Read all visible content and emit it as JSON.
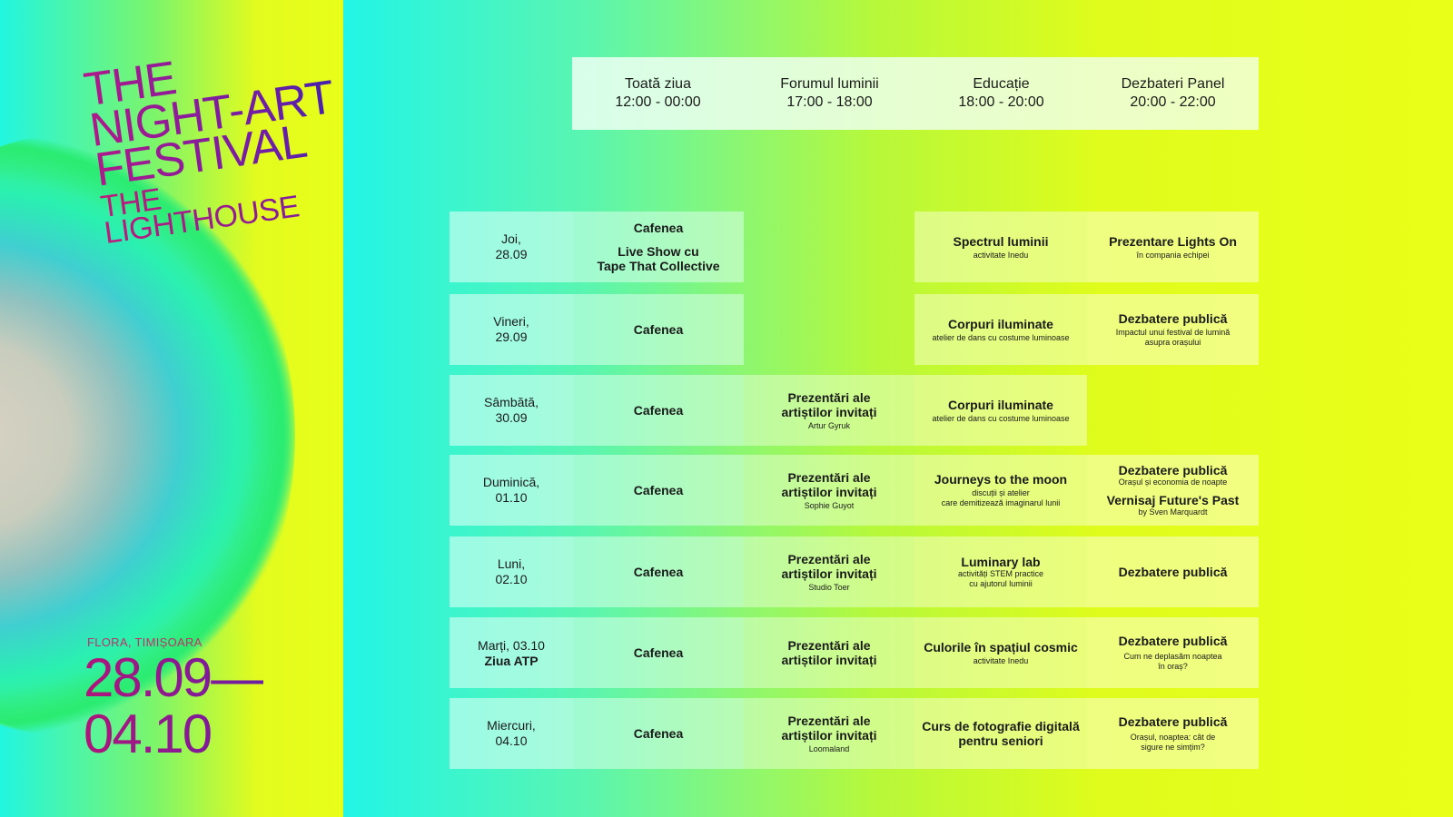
{
  "poster": {
    "title_lines": [
      "THE",
      "NIGHT-ART",
      "FESTIVAL"
    ],
    "subtitle": "THE LIGHTHOUSE",
    "venue": "FLORA, TIMIȘOARA",
    "date_start": "28.09—",
    "date_end": "04.10"
  },
  "columns": [
    {
      "name": "Toată ziua",
      "time": "12:00 - 00:00"
    },
    {
      "name": "Forumul luminii",
      "time": "17:00 - 18:00"
    },
    {
      "name": "Educație",
      "time": "18:00 - 20:00"
    },
    {
      "name": "Dezbateri Panel",
      "time": "20:00 - 22:00"
    }
  ],
  "rows": [
    {
      "day": "Joi,",
      "date": "28.09",
      "extra": "",
      "c1": {
        "title": "Cafenea",
        "title2": "Live Show cu",
        "title3": "Tape That Collective"
      },
      "c3": {
        "title": "Spectrul luminii",
        "sub": "activitate Inedu"
      },
      "c4": {
        "title": "Prezentare Lights On",
        "sub": "în compania echipei"
      }
    },
    {
      "day": "Vineri,",
      "date": "29.09",
      "extra": "",
      "c1": {
        "title": "Cafenea"
      },
      "c3": {
        "title": "Corpuri iluminate",
        "sub": "atelier de dans cu costume luminoase"
      },
      "c4": {
        "title": "Dezbatere publică",
        "sub": "Impactul unui festival de lumină",
        "sub2": "asupra orașului"
      }
    },
    {
      "day": "Sâmbătă,",
      "date": "30.09",
      "extra": "",
      "c1": {
        "title": "Cafenea"
      },
      "c2": {
        "title": "Prezentări ale",
        "title2": "artiștilor invitați",
        "sub": "Artur Gyruk"
      },
      "c3": {
        "title": "Corpuri iluminate",
        "sub": "atelier de dans cu costume luminoase"
      }
    },
    {
      "day": "Duminică,",
      "date": "01.10",
      "extra": "",
      "c1": {
        "title": "Cafenea"
      },
      "c2": {
        "title": "Prezentări ale",
        "title2": "artiștilor invitați",
        "sub": "Sophie Guyot"
      },
      "c3": {
        "title": "Journeys to the moon",
        "sub": "discuții și atelier",
        "sub2": "care demitizează imaginarul lunii"
      },
      "c4": {
        "title": "Dezbatere publică",
        "sub": "Orașul și economia de noapte",
        "title2": "Vernisaj Future's Past",
        "sub2": "by Sven Marquardt"
      }
    },
    {
      "day": "Luni,",
      "date": "02.10",
      "extra": "",
      "c1": {
        "title": "Cafenea"
      },
      "c2": {
        "title": "Prezentări ale",
        "title2": "artiștilor invitați",
        "sub": "Studio Toer"
      },
      "c3": {
        "title": "Luminary lab",
        "sub": "activități STEM practice",
        "sub2": "cu ajutorul luminii"
      },
      "c4": {
        "title": "Dezbatere publică"
      }
    },
    {
      "day": "Marți, 03.10",
      "date": "",
      "extra": "Ziua ATP",
      "c1": {
        "title": "Cafenea"
      },
      "c2": {
        "title": "Prezentări ale",
        "title2": "artiștilor invitați"
      },
      "c3": {
        "title": "Culorile în spațiul cosmic",
        "sub": "activitate Inedu"
      },
      "c4": {
        "title": "Dezbatere publică",
        "sub": "Cum ne deplasăm noaptea",
        "sub2": "în oraș?"
      }
    },
    {
      "day": "Miercuri,",
      "date": "04.10",
      "extra": "",
      "c1": {
        "title": "Cafenea"
      },
      "c2": {
        "title": "Prezentări ale",
        "title2": "artiștilor invitați",
        "sub": "Loomaland"
      },
      "c3": {
        "title": "Curs de fotografie digitală",
        "title2": "pentru seniori"
      },
      "c4": {
        "title": "Dezbatere publică",
        "sub": "Orașul, noaptea: cât de",
        "sub2": "sigure ne simțim?"
      }
    }
  ]
}
